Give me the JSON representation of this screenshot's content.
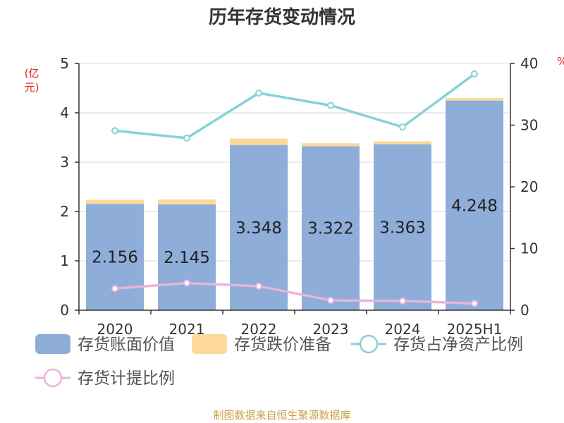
{
  "title": "历年存货变动情况",
  "source": "制图数据来自恒生聚源数据库",
  "chart_data": {
    "type": "bar",
    "title": "历年存货变动情况",
    "categories": [
      "2020",
      "2021",
      "2022",
      "2023",
      "2024",
      "2025H1"
    ],
    "y_left": {
      "label": "(亿元)",
      "ylim": [
        0,
        5
      ],
      "ticks": [
        0,
        1,
        2,
        3,
        4,
        5
      ]
    },
    "y_right": {
      "label": "%",
      "ylim": [
        0,
        40
      ],
      "ticks": [
        0,
        10,
        20,
        30,
        40
      ]
    },
    "grid": true,
    "legend_position": "bottom",
    "series": [
      {
        "name": "存货账面价值",
        "kind": "bar",
        "axis": "left",
        "color": "#8eadd9",
        "values": [
          2.156,
          2.145,
          3.348,
          3.322,
          3.363,
          4.248
        ],
        "labels": [
          "2.156",
          "2.145",
          "3.348",
          "3.322",
          "3.363",
          "4.248"
        ]
      },
      {
        "name": "存货跌价准备",
        "kind": "bar-stacked",
        "axis": "left",
        "color": "#fcd899",
        "values": [
          0.08,
          0.1,
          0.13,
          0.06,
          0.06,
          0.05
        ]
      },
      {
        "name": "存货占净资产比例",
        "kind": "line",
        "axis": "right",
        "color": "#86d2d6",
        "values": [
          29.1,
          27.9,
          35.2,
          33.2,
          29.7,
          38.3
        ]
      },
      {
        "name": "存货计提比例",
        "kind": "line",
        "axis": "right",
        "color": "#e8b4da",
        "values": [
          3.5,
          4.4,
          3.9,
          1.6,
          1.5,
          1.1
        ]
      }
    ]
  }
}
